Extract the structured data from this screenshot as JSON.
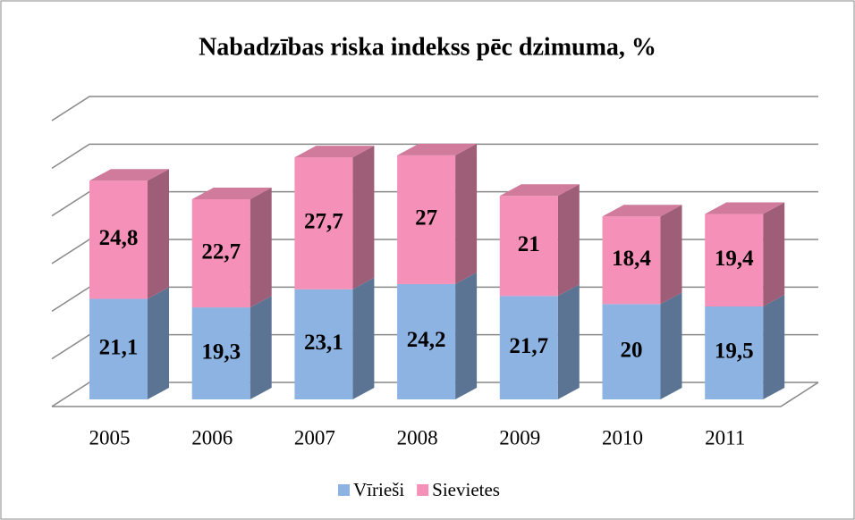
{
  "chart_data": {
    "type": "bar3d_stacked",
    "title": "Nabadzības riska indekss pēc dzimuma, %",
    "categories": [
      "2005",
      "2006",
      "2007",
      "2008",
      "2009",
      "2010",
      "2011"
    ],
    "series": [
      {
        "name": "Vīrieši",
        "color": "#8db3e2",
        "values": [
          21.1,
          19.3,
          23.1,
          24.2,
          21.7,
          20,
          19.5
        ],
        "value_labels": [
          "21,1",
          "19,3",
          "23,1",
          "24,2",
          "21,7",
          "20",
          "19,5"
        ]
      },
      {
        "name": "Sievietes",
        "color": "#f590b8",
        "values": [
          24.8,
          22.7,
          27.7,
          27,
          21,
          18.4,
          19.4
        ],
        "value_labels": [
          "24,8",
          "22,7",
          "27,7",
          "27",
          "21",
          "18,4",
          "19,4"
        ]
      }
    ],
    "ylim": [
      0,
      60
    ],
    "yticks": [
      0,
      10,
      20,
      30,
      40,
      50,
      60
    ],
    "grid": true,
    "legend": "bottom"
  }
}
